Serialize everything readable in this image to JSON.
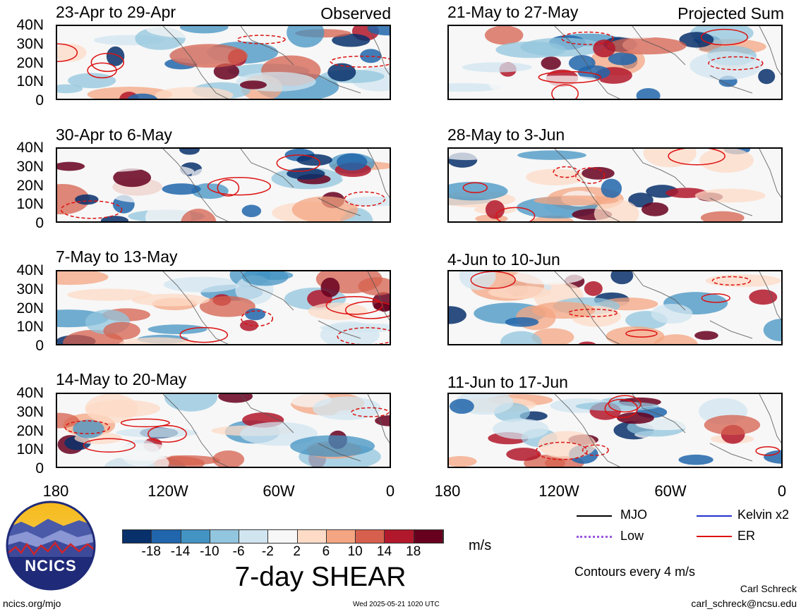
{
  "panels": [
    {
      "title": "23-Apr to 29-Apr",
      "tag": "Observed"
    },
    {
      "title": "21-May to 27-May",
      "tag": "Projected Sum"
    },
    {
      "title": "30-Apr to 6-May",
      "tag": ""
    },
    {
      "title": "28-May to 3-Jun",
      "tag": ""
    },
    {
      "title": "7-May to 13-May",
      "tag": ""
    },
    {
      "title": "4-Jun to 10-Jun",
      "tag": ""
    },
    {
      "title": "14-May to 20-May",
      "tag": ""
    },
    {
      "title": "11-Jun to 17-Jun",
      "tag": ""
    }
  ],
  "lat_labels": [
    "40N",
    "30N",
    "20N",
    "10N",
    "0"
  ],
  "lon_labels": [
    "180",
    "120W",
    "60W",
    "0"
  ],
  "colorbar": {
    "ticks": [
      "-18",
      "-14",
      "-10",
      "-6",
      "-2",
      "2",
      "6",
      "10",
      "14",
      "18"
    ],
    "units": "m/s",
    "colors": [
      "#08306b",
      "#2166ac",
      "#4393c3",
      "#92c5de",
      "#d1e5f0",
      "#f7f7f7",
      "#fddbc7",
      "#f4a582",
      "#d6604d",
      "#b2182b",
      "#67001f"
    ]
  },
  "main_title": "7-day SHEAR",
  "legend": [
    {
      "label": "MJO",
      "color": "#000000",
      "style": "solid"
    },
    {
      "label": "Kelvin x2",
      "color": "#2233cc",
      "style": "solid"
    },
    {
      "label": "Low",
      "color": "#9955dd",
      "style": "dotted"
    },
    {
      "label": "ER",
      "color": "#dd1111",
      "style": "solid"
    }
  ],
  "contour_note": "Contours every 4 m/s",
  "author": "Carl Schreck",
  "email": "carl_schreck@ncsu.edu",
  "website": "ncics.org/mjo",
  "timestamp": "Wed 2025-05-21 1020 UTC",
  "logo_text": "NCICS"
}
